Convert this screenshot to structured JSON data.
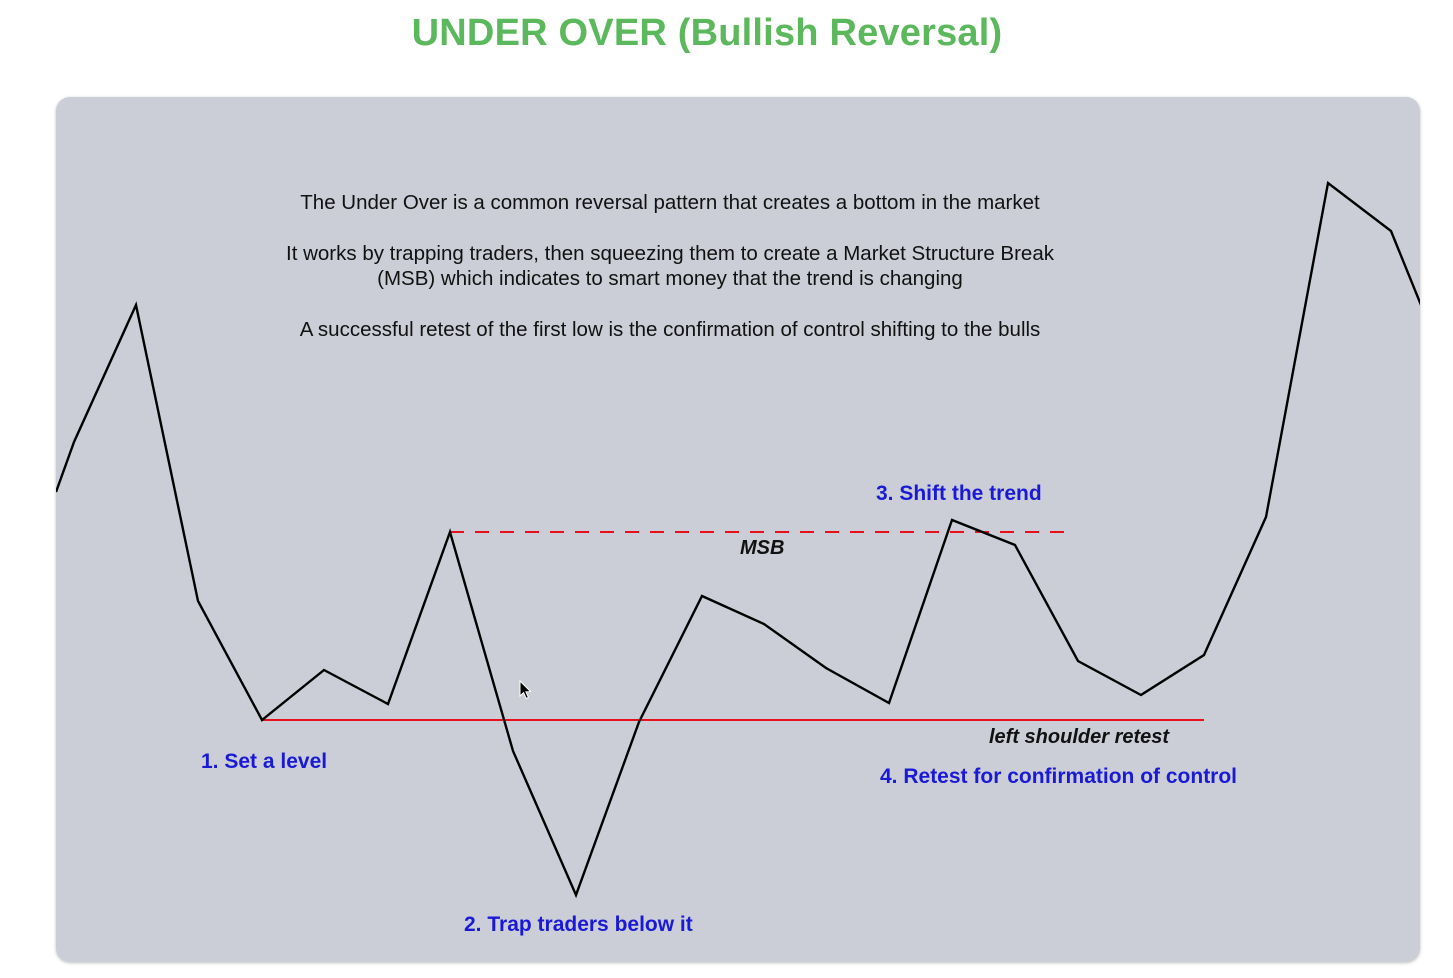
{
  "title": "UNDER OVER (Bullish Reversal)",
  "description": {
    "line1": "The Under Over is a common reversal pattern that creates a bottom in the market",
    "line2a": "It works by trapping traders, then squeezing them to create a Market Structure Break",
    "line2b": "(MSB) which indicates to smart money that the trend is changing",
    "line3": "A successful retest of the first low is the confirmation of control shifting to the bulls"
  },
  "steps": {
    "set_level": "1. Set a level",
    "trap_traders": "2. Trap traders below it",
    "shift_trend": "3. Shift the trend",
    "retest": "4. Retest for confirmation of control"
  },
  "annotations": {
    "msb": "MSB",
    "left_shoulder": "left shoulder retest"
  },
  "colors": {
    "title": "#5cb85c",
    "panel": "#cbced6",
    "price_line": "#000000",
    "level_line": "#e8101a",
    "msb_line": "#e8101a",
    "step_text": "#1a1ad6"
  },
  "icons": {
    "cursor": "mouse-pointer-icon"
  }
}
